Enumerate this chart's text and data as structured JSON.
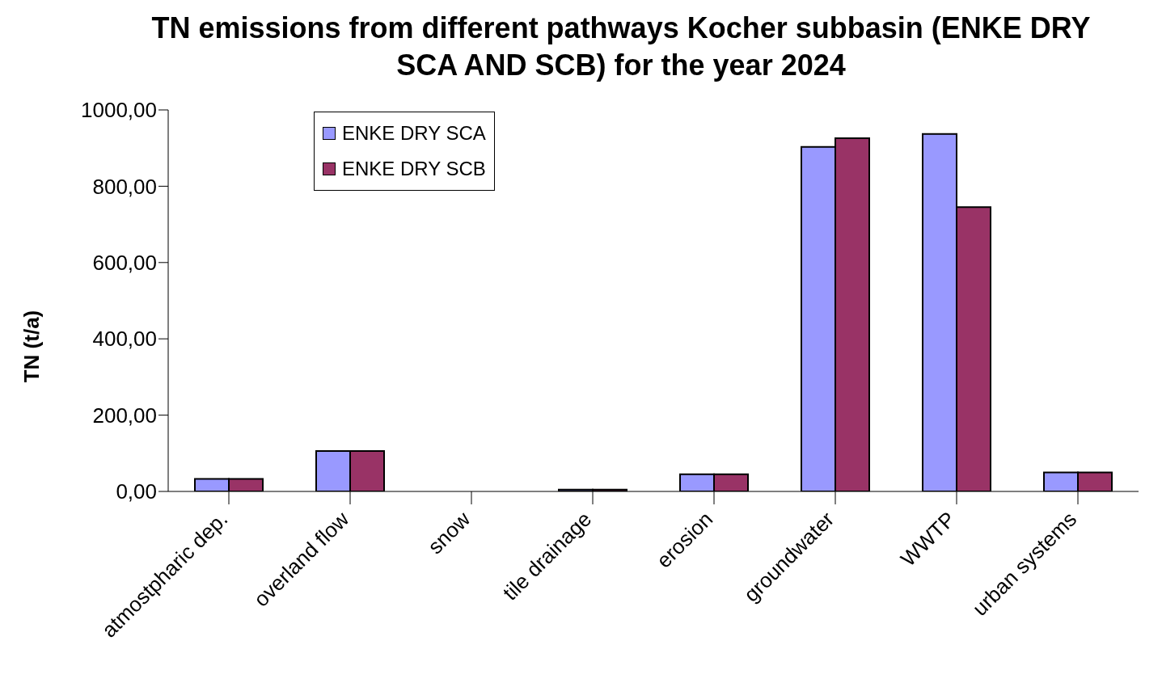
{
  "chart_data": {
    "type": "bar",
    "title": "TN emissions from different pathways Kocher subbasin (ENKE DRY SCA AND SCB) for the year 2024",
    "ylabel": "TN (t/a)",
    "categories": [
      "atmostpharic dep.",
      "overland flow",
      "snow",
      "tile drainage",
      "erosion",
      "groundwater",
      "WWTP",
      "urban systems"
    ],
    "series": [
      {
        "name": "ENKE DRY SCA",
        "color": "#9999ff",
        "values": [
          33,
          106,
          0,
          5,
          45,
          903,
          937,
          50
        ]
      },
      {
        "name": "ENKE DRY SCB",
        "color": "#993366",
        "values": [
          33,
          106,
          0,
          5,
          45,
          926,
          745,
          50
        ]
      }
    ],
    "ylim": [
      0,
      1000
    ],
    "yticks": [
      {
        "value": 0,
        "label": "0,00"
      },
      {
        "value": 200,
        "label": "200,00"
      },
      {
        "value": 400,
        "label": "400,00"
      },
      {
        "value": 600,
        "label": "600,00"
      },
      {
        "value": 800,
        "label": "800,00"
      },
      {
        "value": 1000,
        "label": "1000,00"
      }
    ],
    "grid": false,
    "legend": "top left"
  }
}
